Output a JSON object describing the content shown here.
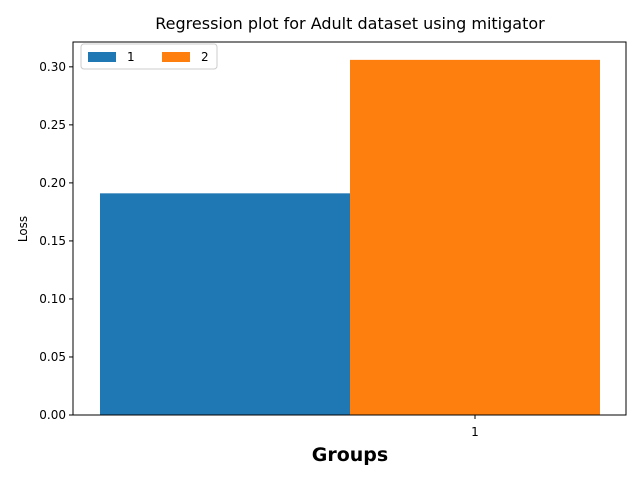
{
  "chart_data": {
    "type": "bar",
    "title": "Regression plot for Adult dataset using mitigator",
    "xlabel": "Groups",
    "ylabel": "Loss",
    "categories": [
      "1"
    ],
    "series": [
      {
        "name": "1",
        "values": [
          0.191
        ],
        "color": "#1f77b4"
      },
      {
        "name": "2",
        "values": [
          0.306
        ],
        "color": "#ff7f0e"
      }
    ],
    "ylim": [
      0,
      0.3214
    ],
    "yticks": [
      "0.00",
      "0.05",
      "0.10",
      "0.15",
      "0.20",
      "0.25",
      "0.30"
    ],
    "ytick_values": [
      0,
      0.05,
      0.1,
      0.15,
      0.2,
      0.25,
      0.3
    ],
    "grid": false,
    "legend": {
      "placement": "top-left",
      "columns": 2
    }
  }
}
